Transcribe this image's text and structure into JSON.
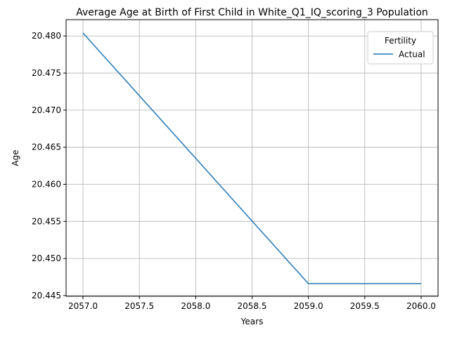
{
  "chart_data": {
    "type": "line",
    "title": "Average Age at Birth of First Child in White_Q1_IQ_scoring_3 Population",
    "xlabel": "Years",
    "ylabel": "Age",
    "xlim": [
      2056.85,
      2060.15
    ],
    "ylim": [
      20.4449,
      20.4822
    ],
    "xticks": [
      2057.0,
      2057.5,
      2058.0,
      2058.5,
      2059.0,
      2059.5,
      2060.0
    ],
    "xtick_labels": [
      "2057.0",
      "2057.5",
      "2058.0",
      "2058.5",
      "2059.0",
      "2059.5",
      "2060.0"
    ],
    "yticks": [
      20.445,
      20.45,
      20.455,
      20.46,
      20.465,
      20.47,
      20.475,
      20.48
    ],
    "ytick_labels": [
      "20.445",
      "20.450",
      "20.455",
      "20.460",
      "20.465",
      "20.470",
      "20.475",
      "20.480"
    ],
    "grid": true,
    "legend": {
      "title": "Fertility",
      "placement": "upper-right"
    },
    "series": [
      {
        "name": "Actual",
        "color": "#1f77b4",
        "x": [
          2057,
          2058,
          2059,
          2060
        ],
        "y": [
          20.4804,
          20.4635,
          20.4466,
          20.4466
        ]
      }
    ]
  }
}
